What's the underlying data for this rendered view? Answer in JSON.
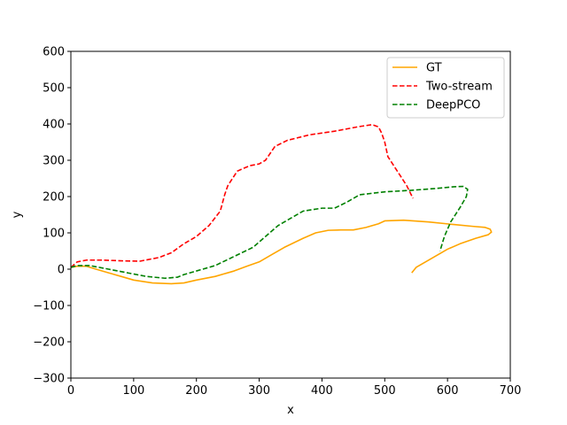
{
  "chart_data": {
    "type": "line",
    "title": "",
    "xlabel": "x",
    "ylabel": "y",
    "xlim": [
      0,
      700
    ],
    "ylim": [
      -300,
      600
    ],
    "xticks": [
      0,
      100,
      200,
      300,
      400,
      500,
      600,
      700
    ],
    "yticks": [
      -300,
      -200,
      -100,
      0,
      100,
      200,
      300,
      400,
      500,
      600
    ],
    "grid": false,
    "legend_position": "top-right",
    "series": [
      {
        "name": "GT",
        "color": "#ffa500",
        "style": "solid",
        "x": [
          0,
          10,
          25,
          40,
          60,
          80,
          100,
          130,
          160,
          180,
          200,
          230,
          260,
          280,
          300,
          320,
          340,
          370,
          390,
          410,
          430,
          450,
          470,
          490,
          500,
          530,
          570,
          610,
          640,
          660,
          668,
          670,
          665,
          645,
          620,
          600,
          575,
          550,
          543
        ],
        "y": [
          5,
          8,
          8,
          0,
          -10,
          -20,
          -30,
          -38,
          -40,
          -38,
          -30,
          -20,
          -5,
          8,
          20,
          40,
          60,
          85,
          100,
          107,
          108,
          108,
          115,
          125,
          133,
          135,
          130,
          123,
          118,
          115,
          110,
          102,
          95,
          85,
          70,
          55,
          30,
          5,
          -10
        ]
      },
      {
        "name": "Two-stream",
        "color": "#ff0000",
        "style": "dashed",
        "x": [
          0,
          10,
          25,
          50,
          80,
          110,
          140,
          160,
          180,
          200,
          220,
          238,
          245,
          250,
          265,
          285,
          300,
          310,
          325,
          345,
          380,
          420,
          460,
          480,
          490,
          495,
          500,
          505,
          520,
          535,
          545
        ],
        "y": [
          5,
          20,
          25,
          25,
          23,
          22,
          32,
          45,
          70,
          90,
          120,
          160,
          205,
          230,
          270,
          285,
          290,
          300,
          338,
          355,
          370,
          380,
          393,
          398,
          392,
          375,
          350,
          310,
          270,
          230,
          195
        ]
      },
      {
        "name": "DeepPCO",
        "color": "#008000",
        "style": "dashed",
        "x": [
          0,
          10,
          30,
          60,
          90,
          120,
          150,
          170,
          180,
          200,
          230,
          260,
          290,
          310,
          330,
          350,
          370,
          400,
          420,
          440,
          460,
          500,
          540,
          580,
          610,
          625,
          632,
          630,
          620,
          605,
          595,
          588
        ],
        "y": [
          5,
          10,
          10,
          0,
          -10,
          -20,
          -25,
          -22,
          -15,
          -5,
          10,
          35,
          60,
          90,
          120,
          140,
          160,
          168,
          168,
          185,
          205,
          213,
          217,
          222,
          227,
          228,
          220,
          200,
          170,
          130,
          90,
          50
        ]
      }
    ]
  }
}
